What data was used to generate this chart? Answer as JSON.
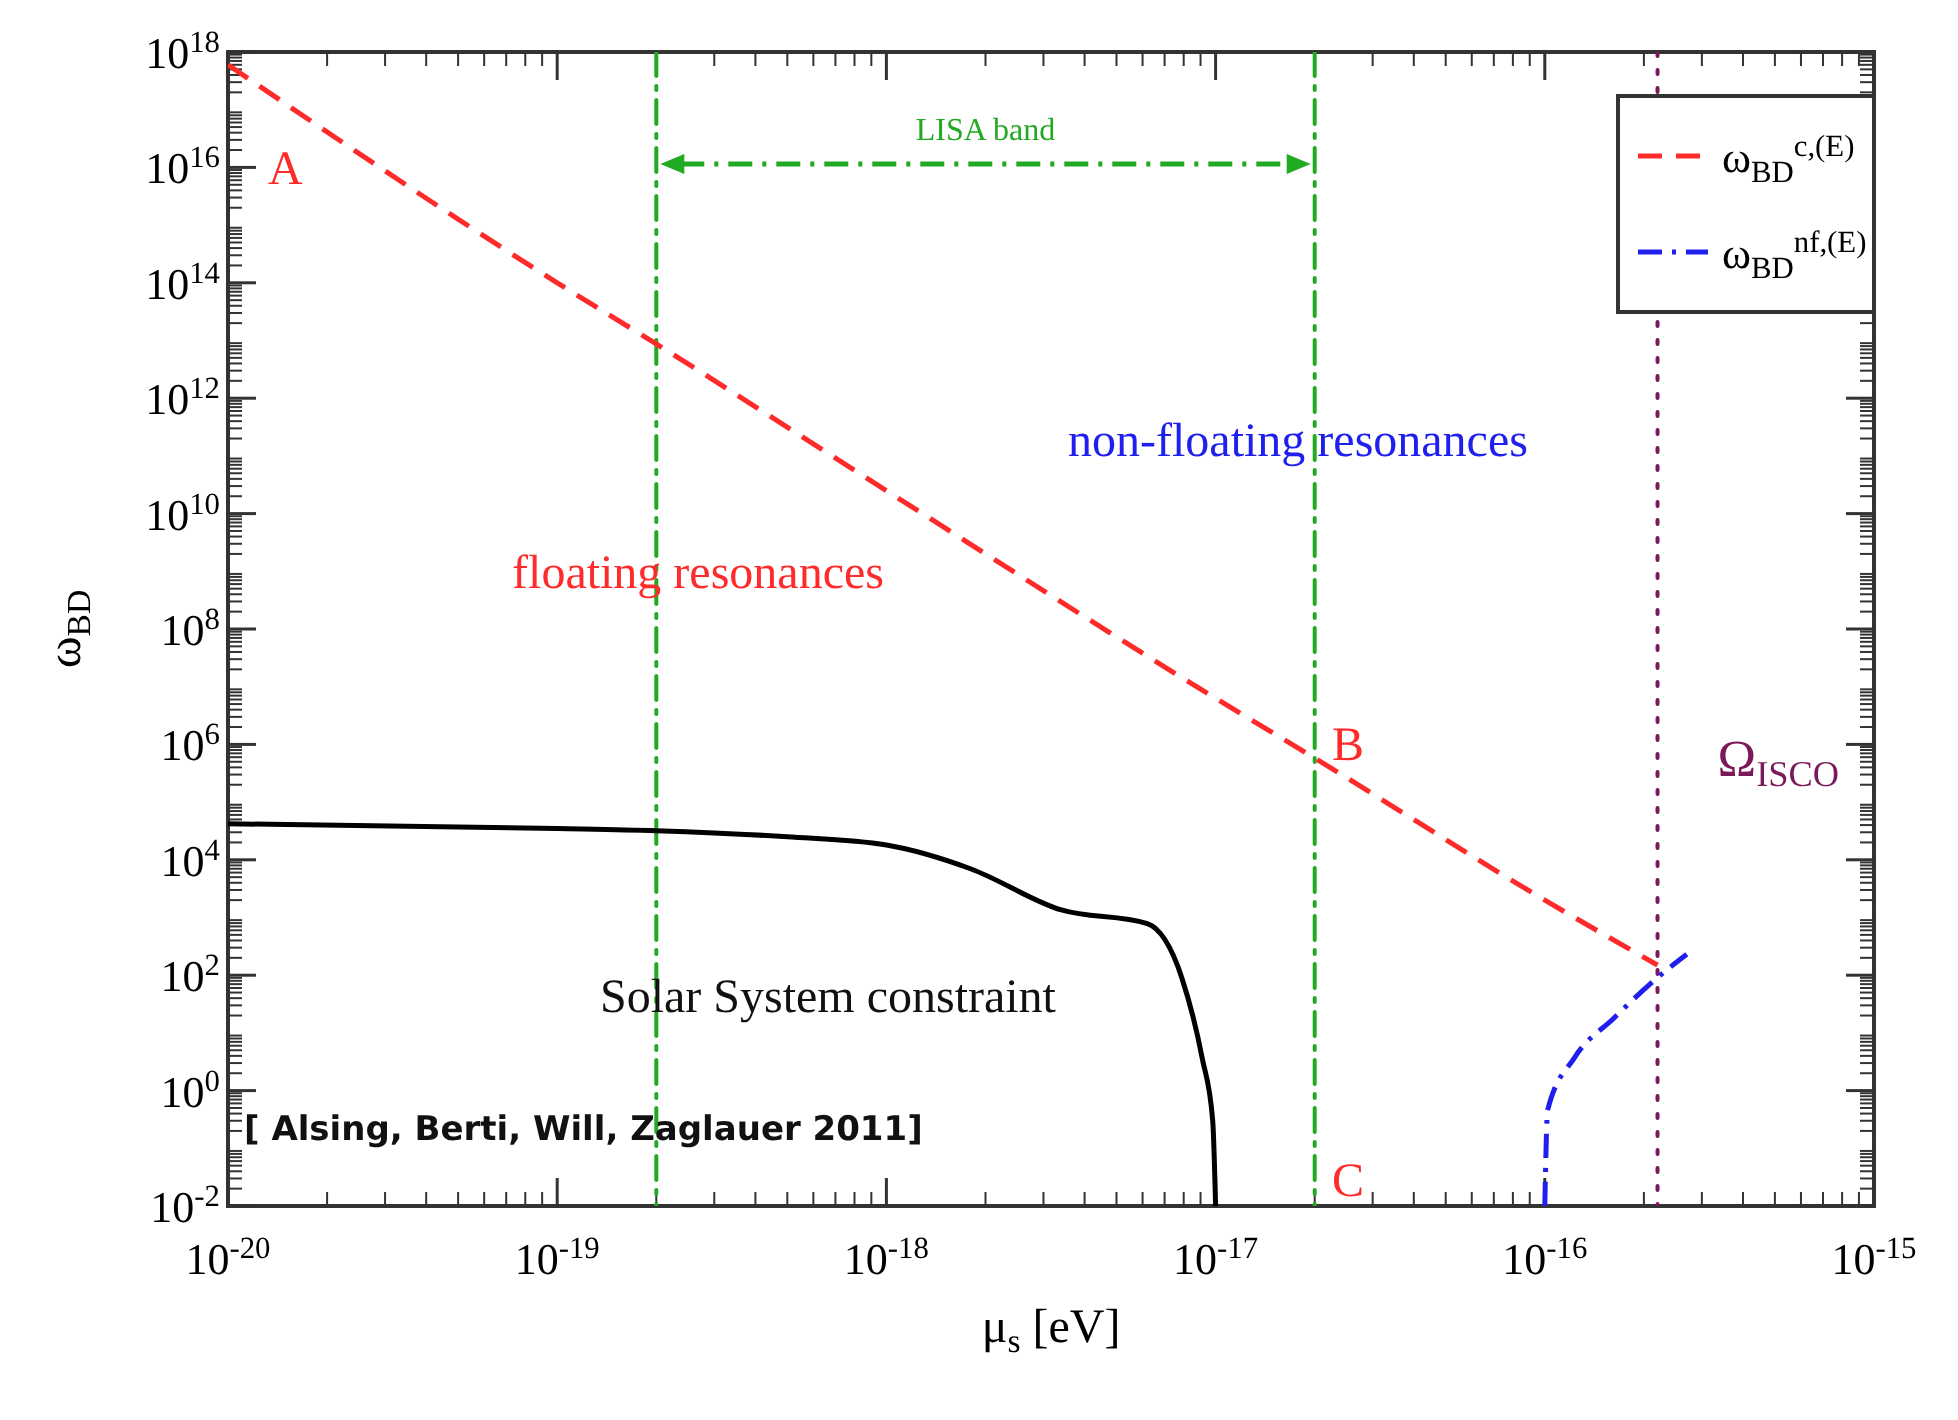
{
  "chart_data": {
    "type": "line",
    "xlabel": "μ$_{s}$ [eV]",
    "ylabel": "ω$_{BD}$",
    "log": "xy",
    "grid": false,
    "legend": "top right",
    "xlim": [
      1e-20,
      1e-15
    ],
    "ylim": [
      0.01,
      1e+18
    ],
    "xticks": [
      {
        "value": 1e-20,
        "label": "10$^{-20}$"
      },
      {
        "value": 1e-19,
        "label": "10$^{-19}$"
      },
      {
        "value": 1e-18,
        "label": "10$^{-18}$"
      },
      {
        "value": 1e-17,
        "label": "10$^{-17}$"
      },
      {
        "value": 1e-16,
        "label": "10$^{-16}$"
      },
      {
        "value": 1e-15,
        "label": "10$^{-15}$"
      }
    ],
    "yticks": [
      {
        "value": 0.01,
        "label": "10$^{-2}$"
      },
      {
        "value": 1,
        "label": "10$^{0}$"
      },
      {
        "value": 100.0,
        "label": "10$^{2}$"
      },
      {
        "value": 10000.0,
        "label": "10$^{4}$"
      },
      {
        "value": 1000000.0,
        "label": "10$^{6}$"
      },
      {
        "value": 100000000.0,
        "label": "10$^{8}$"
      },
      {
        "value": 10000000000.0,
        "label": "10$^{10}$"
      },
      {
        "value": 1000000000000.0,
        "label": "10$^{12}$"
      },
      {
        "value": 100000000000000.0,
        "label": "10$^{14}$"
      },
      {
        "value": 1e+16,
        "label": "10$^{16}$"
      },
      {
        "value": 1e+18,
        "label": "10$^{18}$"
      }
    ],
    "series": [
      {
        "name": "ω$_{BD}$$^{c,(E)}$",
        "color": "#ff2a2a",
        "line_style": "dashed",
        "x": [
          1e-20,
          1e-19,
          2e-19,
          1e-18,
          1e-17,
          2e-17,
          1e-16,
          2.2e-16
        ],
        "values": [
          6e+17,
          100000000000000.0,
          8700000000000.0,
          25000000000.0,
          6300000.0,
          580000.0,
          2000.0,
          150.0
        ]
      },
      {
        "name": "ω$_{BD}$$^{nf,(E)}$",
        "color": "#2020ee",
        "line_style": "dashdot",
        "x": [
          1e-16,
          1.02e-16,
          1.23e-16,
          1.62e-16,
          2.19e-16,
          2.7e-16
        ],
        "values": [
          0.01,
          0.46,
          3.7,
          18,
          89,
          230
        ]
      },
      {
        "color": "#000000",
        "line_style": "solid",
        "x": [
          1e-20,
          1e-19,
          2e-19,
          5e-19,
          1e-18,
          1.8e-18,
          3.4e-18,
          6.2e-18,
          7.9e-18,
          9.1e-18,
          9.8e-18,
          1e-17
        ],
        "values": [
          42000.0,
          35000.0,
          32000.0,
          25000.0,
          18000.0,
          7000.0,
          1350.0,
          780.0,
          89,
          3.7,
          0.3,
          0.01
        ]
      }
    ],
    "ref_lines": [
      {
        "axis": "x",
        "value": 2e-19,
        "color": "#22aa22",
        "line_style": "dashdot"
      },
      {
        "axis": "x",
        "value": 2e-17,
        "color": "#22aa22",
        "line_style": "dashdot"
      },
      {
        "axis": "x",
        "value": 2.2e-16,
        "color": "#7a1a5a",
        "line_style": "dotted",
        "label": "Ω$_{ISCO}$"
      }
    ],
    "annotations": [
      "A",
      "B",
      "C",
      "LISA band",
      "floating resonances",
      "non-floating resonances",
      "Solar System constraint",
      "[ Alsing, Berti, Will, Zaglauer  2011]"
    ]
  }
}
